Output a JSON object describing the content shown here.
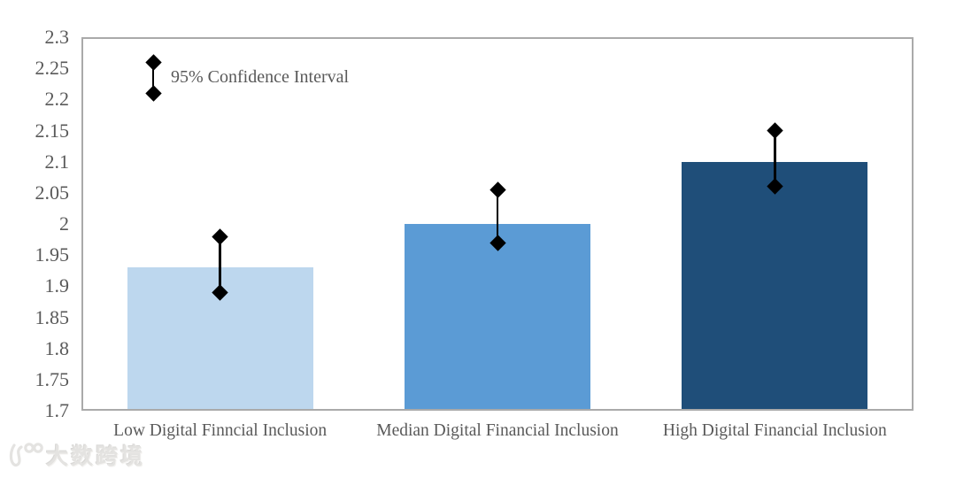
{
  "watermark": {
    "text": "大数跨境",
    "logo_icon": "kuajing-logo"
  },
  "colors": {
    "background": "#ffffff",
    "axis_frame": "#aaaaaa",
    "tick_text": "#595959",
    "marker": "#000000",
    "watermark_text": "#e4e3e1"
  },
  "chart_data": {
    "type": "bar",
    "title": "",
    "xlabel": "",
    "ylabel": "",
    "categories": [
      "Low Digital Finncial Inclusion",
      "Median Digital Financial Inclusion",
      "High Digital Financial Inclusion"
    ],
    "values": [
      1.93,
      2.0,
      2.1
    ],
    "error_bars": [
      {
        "upper": 1.98,
        "lower": 1.89
      },
      {
        "upper": 2.055,
        "lower": 1.97
      },
      {
        "upper": 2.15,
        "lower": 2.06
      }
    ],
    "bar_colors": [
      "#BDD7EE",
      "#5B9BD5",
      "#1F4E79"
    ],
    "ylim": [
      1.7,
      2.3
    ],
    "ytick_step": 0.05,
    "yticks": [
      "2.3",
      "2.25",
      "2.2",
      "2.15",
      "2.1",
      "2.05",
      "2",
      "1.95",
      "1.9",
      "1.85",
      "1.8",
      "1.75",
      "1.7"
    ],
    "grid": false,
    "legend": {
      "label": "95% Confidence Interval",
      "position": "top-left-inside",
      "marker_upper": 2.26,
      "marker_lower": 2.21
    }
  }
}
